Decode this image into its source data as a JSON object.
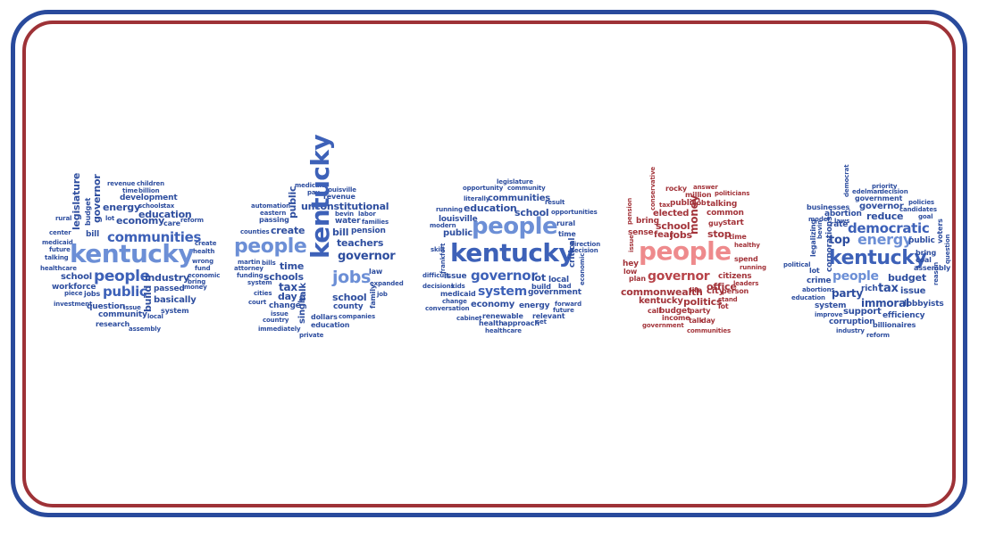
{
  "colors": {
    "outer_frame": "#294a9c",
    "inner_frame": "#9e3237",
    "background": "#ffffff"
  },
  "clouds": [
    {
      "id": "cloud-1",
      "color_dark": "#2e4e9f",
      "color_mid": "#3d61b8",
      "color_light": "#6c8fd6",
      "words": [
        {
          "t": "revenue"
        },
        {
          "t": "children"
        },
        {
          "t": "billion"
        },
        {
          "t": "time"
        },
        {
          "t": "development"
        },
        {
          "t": "schools"
        },
        {
          "t": "tax"
        },
        {
          "t": "legislature"
        },
        {
          "t": "budget"
        },
        {
          "t": "governor"
        },
        {
          "t": "energy"
        },
        {
          "t": "education"
        },
        {
          "t": "lot"
        },
        {
          "t": "economy"
        },
        {
          "t": "care"
        },
        {
          "t": "reform"
        },
        {
          "t": "rural"
        },
        {
          "t": "bill"
        },
        {
          "t": "center"
        },
        {
          "t": "communities"
        },
        {
          "t": "medicaid"
        },
        {
          "t": "create"
        },
        {
          "t": "future"
        },
        {
          "t": "health"
        },
        {
          "t": "talking"
        },
        {
          "t": "kentucky"
        },
        {
          "t": "wrong"
        },
        {
          "t": "healthcare"
        },
        {
          "t": "fund"
        },
        {
          "t": "economic"
        },
        {
          "t": "school"
        },
        {
          "t": "people"
        },
        {
          "t": "industry"
        },
        {
          "t": "bring"
        },
        {
          "t": "workforce"
        },
        {
          "t": "build"
        },
        {
          "t": "passed"
        },
        {
          "t": "money"
        },
        {
          "t": "piece"
        },
        {
          "t": "jobs"
        },
        {
          "t": "public"
        },
        {
          "t": "basically"
        },
        {
          "t": "investment"
        },
        {
          "t": "question"
        },
        {
          "t": "issue"
        },
        {
          "t": "system"
        },
        {
          "t": "community"
        },
        {
          "t": "local"
        },
        {
          "t": "research"
        },
        {
          "t": "assembly"
        }
      ]
    },
    {
      "id": "cloud-2",
      "color_dark": "#2e4e9f",
      "color_mid": "#3d61b8",
      "color_light": "#6c8fd6",
      "words": [
        {
          "t": "medicaid"
        },
        {
          "t": "pay"
        },
        {
          "t": "louisville"
        },
        {
          "t": "revenue"
        },
        {
          "t": "unconstitutional"
        },
        {
          "t": "automation"
        },
        {
          "t": "public"
        },
        {
          "t": "bevin"
        },
        {
          "t": "labor"
        },
        {
          "t": "eastern"
        },
        {
          "t": "water"
        },
        {
          "t": "families"
        },
        {
          "t": "passing"
        },
        {
          "t": "create"
        },
        {
          "t": "bill"
        },
        {
          "t": "pension"
        },
        {
          "t": "counties"
        },
        {
          "t": "people"
        },
        {
          "t": "kentucky"
        },
        {
          "t": "teachers"
        },
        {
          "t": "governor"
        },
        {
          "t": "martin"
        },
        {
          "t": "bills"
        },
        {
          "t": "time"
        },
        {
          "t": "attorney"
        },
        {
          "t": "funding"
        },
        {
          "t": "schools"
        },
        {
          "t": "jobs"
        },
        {
          "t": "law"
        },
        {
          "t": "system"
        },
        {
          "t": "tax"
        },
        {
          "t": "expanded"
        },
        {
          "t": "cities"
        },
        {
          "t": "day"
        },
        {
          "t": "talk"
        },
        {
          "t": "school"
        },
        {
          "t": "job"
        },
        {
          "t": "court"
        },
        {
          "t": "change"
        },
        {
          "t": "county"
        },
        {
          "t": "family"
        },
        {
          "t": "issue"
        },
        {
          "t": "single"
        },
        {
          "t": "dollars"
        },
        {
          "t": "companies"
        },
        {
          "t": "country"
        },
        {
          "t": "education"
        },
        {
          "t": "immediately"
        },
        {
          "t": "private"
        }
      ]
    },
    {
      "id": "cloud-3",
      "color_dark": "#2e4e9f",
      "color_mid": "#3d61b8",
      "color_light": "#6c8fd6",
      "words": [
        {
          "t": "legislature"
        },
        {
          "t": "opportunity"
        },
        {
          "t": "community"
        },
        {
          "t": "literally"
        },
        {
          "t": "communities"
        },
        {
          "t": "result"
        },
        {
          "t": "running"
        },
        {
          "t": "education"
        },
        {
          "t": "school"
        },
        {
          "t": "opportunities"
        },
        {
          "t": "louisville"
        },
        {
          "t": "modern"
        },
        {
          "t": "people"
        },
        {
          "t": "rural"
        },
        {
          "t": "public"
        },
        {
          "t": "time"
        },
        {
          "t": "direction"
        },
        {
          "t": "skill"
        },
        {
          "t": "kentucky"
        },
        {
          "t": "decision"
        },
        {
          "t": "frankfort"
        },
        {
          "t": "critical"
        },
        {
          "t": "economic"
        },
        {
          "t": "difficult"
        },
        {
          "t": "issue"
        },
        {
          "t": "governor"
        },
        {
          "t": "lot"
        },
        {
          "t": "local"
        },
        {
          "t": "decisions"
        },
        {
          "t": "kids"
        },
        {
          "t": "system"
        },
        {
          "t": "build"
        },
        {
          "t": "bad"
        },
        {
          "t": "medicaid"
        },
        {
          "t": "government"
        },
        {
          "t": "change"
        },
        {
          "t": "economy"
        },
        {
          "t": "energy"
        },
        {
          "t": "forward"
        },
        {
          "t": "conversation"
        },
        {
          "t": "future"
        },
        {
          "t": "renewable"
        },
        {
          "t": "relevant"
        },
        {
          "t": "cabinet"
        },
        {
          "t": "health"
        },
        {
          "t": "approach"
        },
        {
          "t": "set"
        },
        {
          "t": "healthcare"
        }
      ]
    },
    {
      "id": "cloud-4",
      "color_dark": "#a3343a",
      "color_mid": "#b8444a",
      "color_light": "#ee8a8c",
      "words": [
        {
          "t": "conservative"
        },
        {
          "t": "answer"
        },
        {
          "t": "rocky"
        },
        {
          "t": "million"
        },
        {
          "t": "politicians"
        },
        {
          "t": "tax"
        },
        {
          "t": "public"
        },
        {
          "t": "job"
        },
        {
          "t": "talking"
        },
        {
          "t": "pension"
        },
        {
          "t": "elected"
        },
        {
          "t": "common"
        },
        {
          "t": "bring"
        },
        {
          "t": "money"
        },
        {
          "t": "guy"
        },
        {
          "t": "start"
        },
        {
          "t": "school"
        },
        {
          "t": "issue"
        },
        {
          "t": "sense"
        },
        {
          "t": "fear"
        },
        {
          "t": "jobs"
        },
        {
          "t": "stop"
        },
        {
          "t": "time"
        },
        {
          "t": "healthy"
        },
        {
          "t": "people"
        },
        {
          "t": "hey"
        },
        {
          "t": "low"
        },
        {
          "t": "spend"
        },
        {
          "t": "running"
        },
        {
          "t": "governor"
        },
        {
          "t": "plan"
        },
        {
          "t": "citizens"
        },
        {
          "t": "office"
        },
        {
          "t": "leaders"
        },
        {
          "t": "commonwealth"
        },
        {
          "t": "life"
        },
        {
          "t": "city"
        },
        {
          "t": "person"
        },
        {
          "t": "kentucky"
        },
        {
          "t": "politics"
        },
        {
          "t": "stand"
        },
        {
          "t": "call"
        },
        {
          "t": "budget"
        },
        {
          "t": "party"
        },
        {
          "t": "lot"
        },
        {
          "t": "income"
        },
        {
          "t": "talk"
        },
        {
          "t": "day"
        },
        {
          "t": "government"
        },
        {
          "t": "communities"
        }
      ]
    },
    {
      "id": "cloud-5",
      "color_dark": "#2e4e9f",
      "color_mid": "#3d61b8",
      "color_light": "#6c8fd6",
      "words": [
        {
          "t": "priority"
        },
        {
          "t": "democrat"
        },
        {
          "t": "edelman"
        },
        {
          "t": "decision"
        },
        {
          "t": "government"
        },
        {
          "t": "businesses"
        },
        {
          "t": "governor"
        },
        {
          "t": "policies"
        },
        {
          "t": "candidates"
        },
        {
          "t": "abortion"
        },
        {
          "t": "reduce"
        },
        {
          "t": "goal"
        },
        {
          "t": "laws"
        },
        {
          "t": "model"
        },
        {
          "t": "rate"
        },
        {
          "t": "democratic"
        },
        {
          "t": "voters"
        },
        {
          "t": "bevin"
        },
        {
          "t": "top"
        },
        {
          "t": "energy"
        },
        {
          "t": "public"
        },
        {
          "t": "question"
        },
        {
          "t": "legalizing"
        },
        {
          "t": "corporations"
        },
        {
          "t": "kentucky"
        },
        {
          "t": "bring"
        },
        {
          "t": "coal"
        },
        {
          "t": "political"
        },
        {
          "t": "lot"
        },
        {
          "t": "assembly"
        },
        {
          "t": "people"
        },
        {
          "t": "budget"
        },
        {
          "t": "reason"
        },
        {
          "t": "crime"
        },
        {
          "t": "rich"
        },
        {
          "t": "tax"
        },
        {
          "t": "issue"
        },
        {
          "t": "abortions"
        },
        {
          "t": "party"
        },
        {
          "t": "education"
        },
        {
          "t": "immoral"
        },
        {
          "t": "lobbyists"
        },
        {
          "t": "system"
        },
        {
          "t": "support"
        },
        {
          "t": "improve"
        },
        {
          "t": "efficiency"
        },
        {
          "t": "corruption"
        },
        {
          "t": "billionaires"
        },
        {
          "t": "industry"
        },
        {
          "t": "reform"
        }
      ]
    }
  ]
}
